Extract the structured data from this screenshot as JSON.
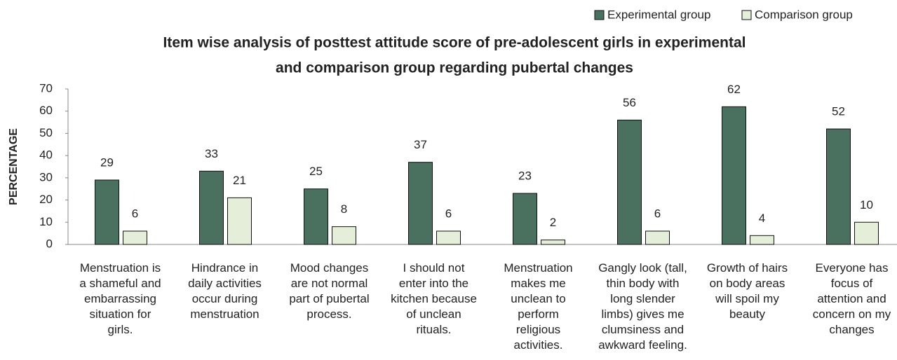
{
  "chart_data": {
    "type": "bar",
    "title": [
      "Item wise analysis of posttest attitude score of pre-adolescent girls in experimental",
      "and comparison group regarding pubertal changes"
    ],
    "y_label": "PERCENTAGE",
    "categories": [
      "Menstruation is\na shameful and\nembarrassing\nsituation for\ngirls.",
      "Hindrance in\ndaily activities\noccur during\nmenstruation",
      "Mood changes\nare not normal\npart of pubertal\nprocess.",
      "I should not\nenter into the\nkitchen because\nof unclean\nrituals.",
      "Menstruation\nmakes me\nunclean to\nperform\nreligious\nactivities.",
      "Gangly look (tall,\nthin body with\nlong slender\nlimbs) gives me\nclumsiness and\nawkward feeling.",
      "Growth of hairs\non body areas\nwill spoil my\nbeauty",
      "Everyone has\nfocus of\nattention and\nconcern on my\nchanges"
    ],
    "series": [
      {
        "name": "Experimental group",
        "color": "#4a7060",
        "values": [
          29,
          33,
          25,
          37,
          23,
          56,
          62,
          52
        ]
      },
      {
        "name": "Comparison group",
        "color": "#e5eed8",
        "values": [
          6,
          21,
          8,
          6,
          2,
          6,
          4,
          10
        ]
      }
    ],
    "ylim": [
      0,
      70
    ],
    "yticks": [
      0,
      10,
      20,
      30,
      40,
      50,
      60,
      70
    ],
    "grid": false,
    "legend": "top-right"
  }
}
